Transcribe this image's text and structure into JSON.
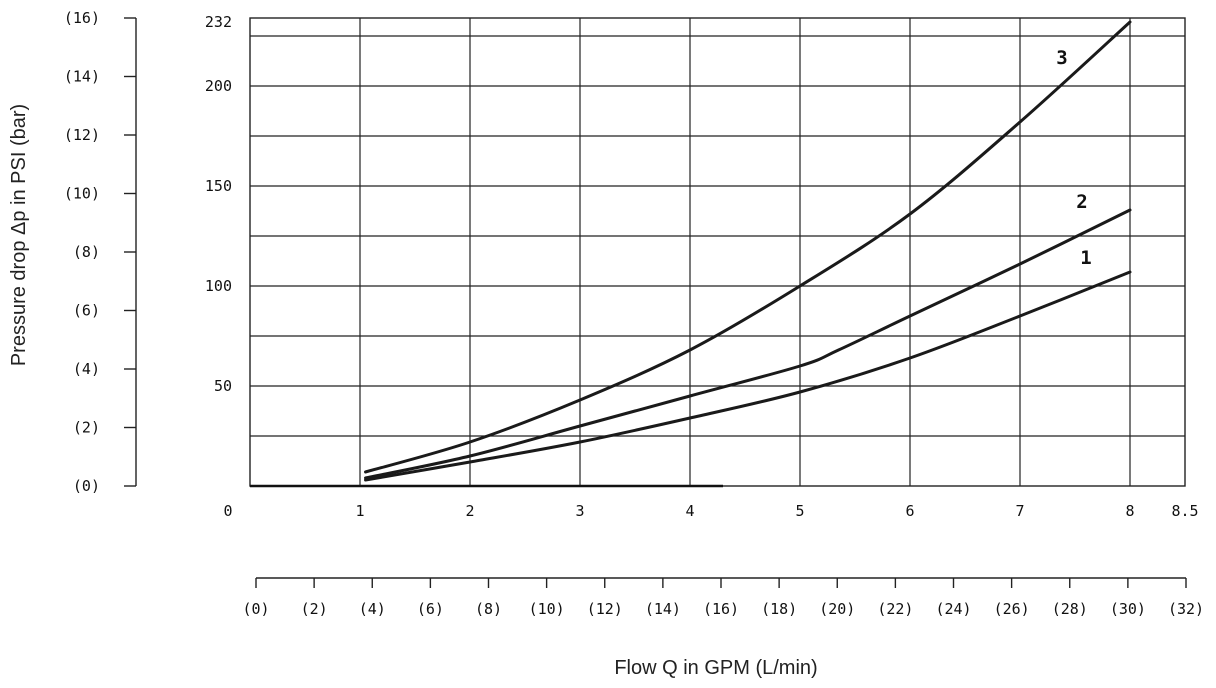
{
  "chart_data": {
    "type": "line",
    "title": "",
    "ylabel": "Pressure drop  Δp in PSI (bar)",
    "xlabel": "Flow Q in GPM (L/min)",
    "xlim": [
      0,
      8.5
    ],
    "ylim": [
      0,
      232
    ],
    "grid": true,
    "gpm_ticks": [
      "0",
      "1",
      "2",
      "3",
      "4",
      "5",
      "6",
      "7",
      "8",
      "8.5"
    ],
    "gpm_tick_values": [
      0,
      1,
      2,
      3,
      4,
      5,
      6,
      7,
      8,
      8.5
    ],
    "psi_ticks": [
      "50",
      "100",
      "150",
      "200",
      "232"
    ],
    "psi_tick_values": [
      50,
      100,
      150,
      200,
      232
    ],
    "bar_ticks": [
      "(0)",
      "(2)",
      "(4)",
      "(6)",
      "(8)",
      "(10)",
      "(12)",
      "(14)",
      "(16)"
    ],
    "bar_tick_values": [
      0,
      2,
      4,
      6,
      8,
      10,
      12,
      14,
      16
    ],
    "lpm_ticks": [
      "(0)",
      "(2)",
      "(4)",
      "(6)",
      "(8)",
      "(10)",
      "(12)",
      "(14)",
      "(16)",
      "(18)",
      "(20)",
      "(22)",
      "(24)",
      "(26)",
      "(28)",
      "(30)",
      "(32)"
    ],
    "lpm_tick_values": [
      0,
      2,
      4,
      6,
      8,
      10,
      12,
      14,
      16,
      18,
      20,
      22,
      24,
      26,
      28,
      30,
      32
    ],
    "series": [
      {
        "name": "1",
        "x": [
          1.05,
          2,
          3,
          4,
          5,
          6,
          7,
          8
        ],
        "y": [
          3,
          12,
          22,
          34,
          47,
          64,
          85,
          107
        ]
      },
      {
        "name": "2",
        "x": [
          1.05,
          2,
          3,
          4,
          5,
          5.35,
          6,
          7,
          8
        ],
        "y": [
          4,
          15,
          30,
          45,
          60,
          68,
          85,
          111,
          138
        ]
      },
      {
        "name": "3",
        "x": [
          1.05,
          2,
          3,
          4,
          5,
          6,
          7,
          8
        ],
        "y": [
          7,
          22,
          43,
          68,
          100,
          136,
          182,
          232
        ]
      }
    ]
  }
}
